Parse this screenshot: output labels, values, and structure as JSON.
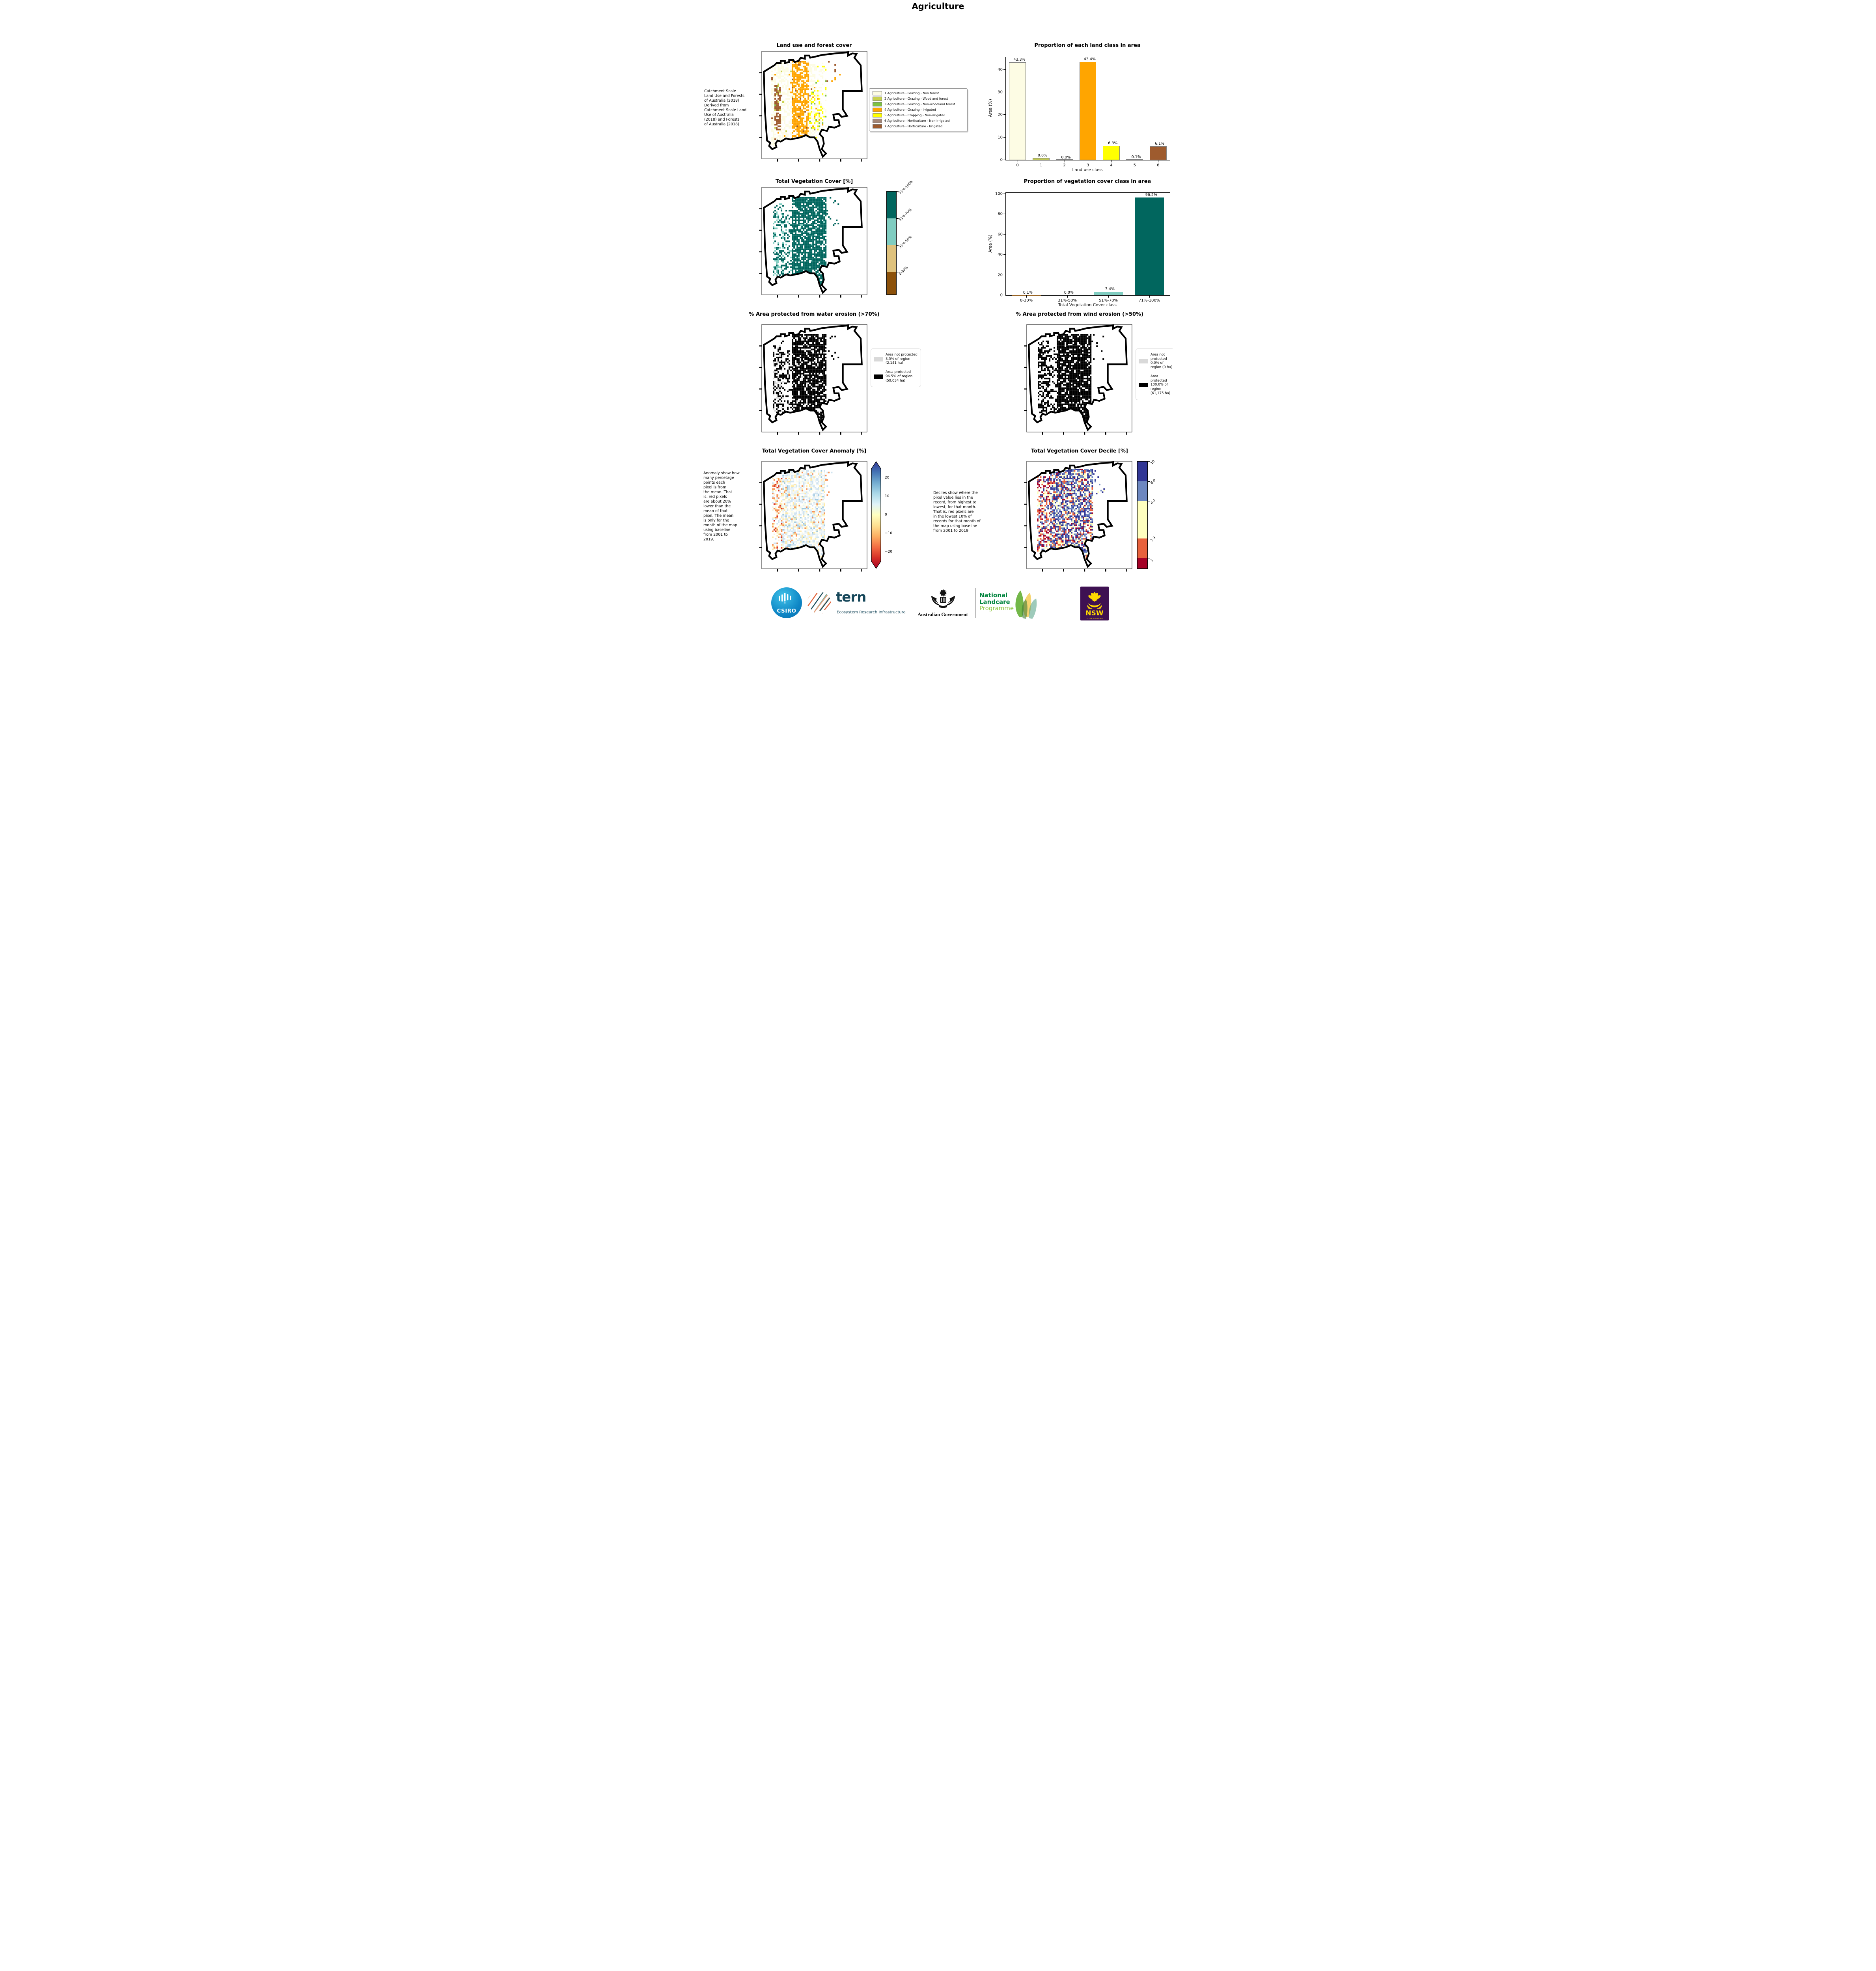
{
  "header": {
    "title": "Agriculture"
  },
  "panels": {
    "landuse": {
      "title": "Land use and forest cover",
      "note": " Catchment Scale\nLand Use and Forests\nof Australia (2018)\nDerived from\nCatchment Scale Land\nUse of Australia\n(2018) and Forests\nof Australia (2018)",
      "legend": [
        {
          "label": "1 Agriculture - Grazing - Non forest",
          "color": "#fdfce4"
        },
        {
          "label": "2 Agriculture - Grazing - Woodland forest",
          "color": "#c9d24f"
        },
        {
          "label": "3 Agriculture - Grazing - Non-woodland forest",
          "color": "#7fc242"
        },
        {
          "label": "4 Agriculture - Grazing - Irrigated",
          "color": "#ffa500"
        },
        {
          "label": "5 Agriculture - Cropping - Non-irrigated",
          "color": "#ffff00"
        },
        {
          "label": "6 Agriculture - Horticulture - Non-irrigated",
          "color": "#a58778"
        },
        {
          "label": "7 Agriculture - Horticulture - Irrigated",
          "color": "#9e5b2e"
        }
      ]
    },
    "vegcover": {
      "title": "Total Vegetation Cover [%]",
      "colorbar": [
        {
          "label": "71%-100%",
          "color": "#01665e"
        },
        {
          "label": "51%-70%",
          "color": "#80cdc1"
        },
        {
          "label": "31%-50%",
          "color": "#dfc27d"
        },
        {
          "label": "0-30%",
          "color": "#8c510a"
        }
      ]
    },
    "water": {
      "title": "% Area protected from water erosion (>70%)",
      "legend": [
        {
          "label": "Area not protected 3.5% of region (2,141 ha)",
          "color": "#d9d9d9"
        },
        {
          "label": "Area protected 96.5% of region (59,034 ha)",
          "color": "#000000"
        }
      ]
    },
    "wind": {
      "title": "% Area protected from wind erosion (>50%)",
      "legend": [
        {
          "label": "Area not protected 0.0% of region (0 ha)",
          "color": "#d9d9d9"
        },
        {
          "label": "Area protected 100.0% of region (61,175 ha)",
          "color": "#000000"
        }
      ]
    },
    "anomaly": {
      "title": "Total Vegetation Cover Anomaly [%]",
      "note": "Anomaly show how\nmany percetage\npoints each\npixel is from\nthe mean. That\nis, red pixels\nare about 20%\nlower than the\nmean of that\npixel. The mean\nis only for the\nmonth of the map\nusing baseline\nfrom 2001 to\n2019.",
      "colorbar_ticks": [
        "20",
        "10",
        "0",
        "−10",
        "−20"
      ]
    },
    "decile": {
      "title": "Total Vegetation Cover Decile [%]",
      "note": "Deciles show where the\npixel value lies in the\nrecord, from highest to\nlowest, for that month.\nThat is, red pixels are\nin the lowest 10% of\nrecords for that month of\nthe map using baseline\nfrom 2001 to 2019.",
      "colorbar": [
        {
          "label": "10",
          "color": "#313695"
        },
        {
          "label": "8-9",
          "color": "#6d87c0"
        },
        {
          "label": "4-7",
          "color": "#ffffbf"
        },
        {
          "label": "2-3",
          "color": "#e8613c"
        },
        {
          "label": "1",
          "color": "#a50026"
        }
      ]
    }
  },
  "chart_data": [
    {
      "type": "bar",
      "title": "Proportion of each land class in area",
      "xlabel": "Land use class",
      "ylabel": "Area (%)",
      "categories": [
        "0",
        "1",
        "2",
        "3",
        "4",
        "5",
        "6"
      ],
      "values": [
        43.3,
        0.8,
        0.0,
        43.4,
        6.3,
        0.1,
        6.1
      ],
      "labels": [
        "43.3%",
        "0.8%",
        "0.0%",
        "43.4%",
        "6.3%",
        "0.1%",
        "6.1%"
      ],
      "colors": [
        "#fdfce4",
        "#c9d24f",
        "#7fc242",
        "#ffa500",
        "#ffff00",
        "#a58778",
        "#9e5b2e"
      ],
      "yticks": [
        0,
        10,
        20,
        30,
        40
      ],
      "ylim": [
        0,
        45.5
      ],
      "legend_position": "none",
      "grid": false,
      "bar_edge": "#808080"
    },
    {
      "type": "bar",
      "title": "Proportion of vegetation cover class in area",
      "xlabel": "Total Vegetation Cover class",
      "ylabel": "Area (%)",
      "categories": [
        "0-30%",
        "31%-50%",
        "51%-70%",
        "71%-100%"
      ],
      "values": [
        0.1,
        0.0,
        3.4,
        96.5
      ],
      "labels": [
        "0.1%",
        "0.0%",
        "3.4%",
        "96.5%"
      ],
      "colors": [
        "#8c510a",
        "#dfc27d",
        "#80cdc1",
        "#01665e"
      ],
      "yticks": [
        0,
        20,
        40,
        60,
        80,
        100
      ],
      "ylim": [
        0,
        101
      ],
      "legend_position": "none",
      "grid": false,
      "bar_edge": "none"
    }
  ],
  "maps": {
    "landuse": {
      "seed": 11,
      "cell": 1.5,
      "bands": [
        {
          "x": [
            11,
            17
          ],
          "y": [
            30,
            72
          ],
          "p": 0.72,
          "colors": [
            [
              "#9e5b2e",
              0.75
            ],
            [
              "#fdfce4",
              0.1
            ],
            [
              "#c9d24f",
              0.1
            ],
            [
              "#7fc242",
              0.05
            ]
          ]
        },
        {
          "x": [
            28,
            44
          ],
          "y": [
            9,
            88
          ],
          "p": 0.82,
          "colors": [
            [
              "#ffa500",
              0.8
            ],
            [
              "#fdfce4",
              0.17
            ],
            [
              "#9e5b2e",
              0.03
            ]
          ]
        },
        {
          "x": [
            44,
            57
          ],
          "y": [
            35,
            72
          ],
          "p": 0.55,
          "colors": [
            [
              "#ffff00",
              0.45
            ],
            [
              "#fdfce4",
              0.44
            ],
            [
              "#7fc242",
              0.04
            ],
            [
              "#ffa500",
              0.05
            ],
            [
              "#a58778",
              0.02
            ]
          ]
        },
        {
          "x": [
            8,
            50
          ],
          "y": [
            10,
            88
          ],
          "p": 0.5,
          "colors": [
            [
              "#fdfce4",
              0.93
            ],
            [
              "#ffa500",
              0.03
            ],
            [
              "#c9d24f",
              0.02
            ],
            [
              "#9e5b2e",
              0.02
            ]
          ]
        },
        {
          "x": [
            50,
            60
          ],
          "y": [
            10,
            80
          ],
          "p": 0.25,
          "colors": [
            [
              "#fdfce4",
              0.8
            ],
            [
              "#ffff00",
              0.15
            ],
            [
              "#7fc242",
              0.05
            ]
          ]
        },
        {
          "x": [
            60,
            75
          ],
          "y": [
            6,
            30
          ],
          "p": 0.05,
          "colors": [
            [
              "#9e5b2e",
              0.5
            ],
            [
              "#ffa500",
              0.5
            ]
          ]
        }
      ]
    },
    "vegcover": {
      "seed": 22,
      "cell": 1.5,
      "bands": [
        {
          "x": [
            10,
            20
          ],
          "y": [
            15,
            82
          ],
          "p": 0.5,
          "colors": [
            [
              "#01665e",
              0.6
            ],
            [
              "#80cdc1",
              0.4
            ]
          ]
        },
        {
          "x": [
            20,
            28
          ],
          "y": [
            20,
            80
          ],
          "p": 0.3,
          "colors": [
            [
              "#01665e",
              0.9
            ],
            [
              "#80cdc1",
              0.1
            ]
          ]
        },
        {
          "x": [
            28,
            60
          ],
          "y": [
            8,
            90
          ],
          "p": 0.8,
          "colors": [
            [
              "#01665e",
              0.97
            ],
            [
              "#80cdc1",
              0.03
            ]
          ]
        },
        {
          "x": [
            60,
            72
          ],
          "y": [
            8,
            35
          ],
          "p": 0.06,
          "colors": [
            [
              "#01665e",
              1
            ]
          ]
        }
      ]
    },
    "water": {
      "seed": 33,
      "cell": 1.5,
      "bands": [
        {
          "x": [
            10,
            20
          ],
          "y": [
            15,
            82
          ],
          "p": 0.5,
          "colors": [
            [
              "#000000",
              0.7
            ],
            [
              "#d9d9d9",
              0.3
            ]
          ]
        },
        {
          "x": [
            20,
            28
          ],
          "y": [
            20,
            80
          ],
          "p": 0.3,
          "colors": [
            [
              "#000000",
              1
            ]
          ]
        },
        {
          "x": [
            28,
            60
          ],
          "y": [
            8,
            90
          ],
          "p": 0.8,
          "colors": [
            [
              "#000000",
              0.98
            ],
            [
              "#d9d9d9",
              0.02
            ]
          ]
        },
        {
          "x": [
            60,
            72
          ],
          "y": [
            8,
            35
          ],
          "p": 0.06,
          "colors": [
            [
              "#000000",
              1
            ]
          ]
        }
      ]
    },
    "wind": {
      "seed": 44,
      "cell": 1.5,
      "bands": [
        {
          "x": [
            10,
            20
          ],
          "y": [
            15,
            82
          ],
          "p": 0.55,
          "colors": [
            [
              "#000000",
              1
            ]
          ]
        },
        {
          "x": [
            20,
            28
          ],
          "y": [
            20,
            80
          ],
          "p": 0.32,
          "colors": [
            [
              "#000000",
              1
            ]
          ]
        },
        {
          "x": [
            28,
            60
          ],
          "y": [
            8,
            90
          ],
          "p": 0.82,
          "colors": [
            [
              "#000000",
              1
            ]
          ]
        },
        {
          "x": [
            60,
            72
          ],
          "y": [
            8,
            35
          ],
          "p": 0.06,
          "colors": [
            [
              "#000000",
              1
            ]
          ]
        }
      ]
    },
    "anomaly": {
      "seed": 55,
      "cell": 1.4,
      "bands": [
        {
          "x": [
            9,
            19
          ],
          "y": [
            15,
            82
          ],
          "p": 0.55,
          "colors": [
            [
              "#f59053",
              0.28
            ],
            [
              "#d73027",
              0.14
            ],
            [
              "#fee9a8",
              0.25
            ],
            [
              "#f8f4df",
              0.2
            ],
            [
              "#cfe3f0",
              0.13
            ]
          ]
        },
        {
          "x": [
            19,
            60
          ],
          "y": [
            8,
            90
          ],
          "p": 0.72,
          "colors": [
            [
              "#e9f2f7",
              0.3
            ],
            [
              "#cfe3f0",
              0.24
            ],
            [
              "#fdfdea",
              0.22
            ],
            [
              "#fee9a8",
              0.12
            ],
            [
              "#f59053",
              0.06
            ],
            [
              "#9ec8e0",
              0.06
            ]
          ]
        },
        {
          "x": [
            60,
            72
          ],
          "y": [
            8,
            35
          ],
          "p": 0.05,
          "colors": [
            [
              "#cfe3f0",
              0.6
            ],
            [
              "#f59053",
              0.4
            ]
          ]
        }
      ]
    },
    "decile": {
      "seed": 66,
      "cell": 1.4,
      "bands": [
        {
          "x": [
            9,
            21
          ],
          "y": [
            14,
            84
          ],
          "p": 0.55,
          "colors": [
            [
              "#a50026",
              0.24
            ],
            [
              "#e8613c",
              0.24
            ],
            [
              "#ffffbf",
              0.25
            ],
            [
              "#313695",
              0.15
            ],
            [
              "#6d87c0",
              0.12
            ]
          ]
        },
        {
          "x": [
            21,
            62
          ],
          "y": [
            6,
            90
          ],
          "p": 0.75,
          "colors": [
            [
              "#313695",
              0.36
            ],
            [
              "#6d87c0",
              0.22
            ],
            [
              "#ffffbf",
              0.22
            ],
            [
              "#e8613c",
              0.13
            ],
            [
              "#a50026",
              0.07
            ]
          ]
        },
        {
          "x": [
            62,
            74
          ],
          "y": [
            8,
            35
          ],
          "p": 0.1,
          "colors": [
            [
              "#313695",
              0.5
            ],
            [
              "#6d87c0",
              0.3
            ],
            [
              "#ffffbf",
              0.2
            ]
          ]
        }
      ]
    }
  },
  "footer": {
    "csiro": "CSIRO",
    "tern": "tern",
    "tern_sub": "Ecosystem Research Infrastructure",
    "ausgov": "Australian Government",
    "landcare1": "National",
    "landcare2": "Landcare",
    "landcare3": "Programme",
    "nsw": "NSW",
    "nsw_sub": "GOVERNMENT"
  }
}
